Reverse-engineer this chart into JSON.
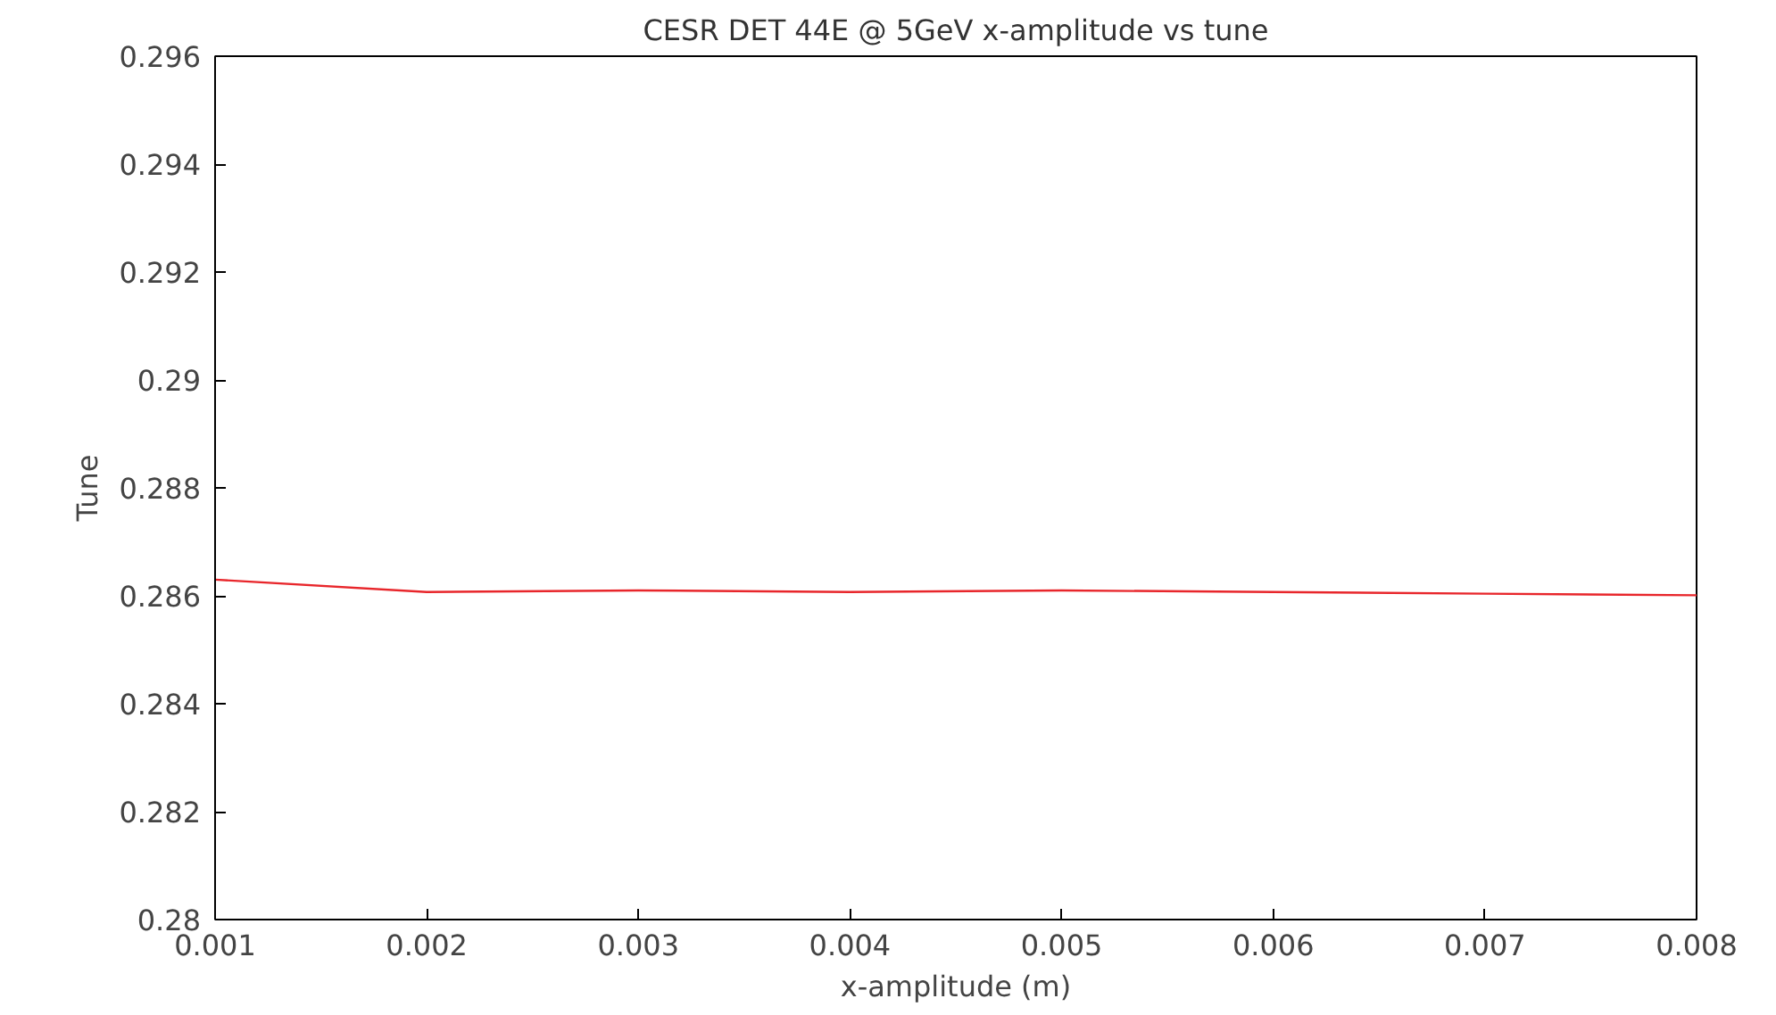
{
  "chart_data": {
    "type": "line",
    "title": "CESR DET 44E @ 5GeV x-amplitude vs tune",
    "xlabel": "x-amplitude (m)",
    "ylabel": "Tune",
    "x": [
      0.001,
      0.002,
      0.003,
      0.004,
      0.005,
      0.006,
      0.007,
      0.008
    ],
    "series": [
      {
        "color": "#e8262b",
        "values": [
          0.2863,
          0.28607,
          0.2861,
          0.28607,
          0.2861,
          0.28607,
          0.28604,
          0.28601
        ]
      }
    ],
    "xlim": [
      0.001,
      0.008
    ],
    "ylim": [
      0.28,
      0.296
    ],
    "xticks": [
      0.001,
      0.002,
      0.003,
      0.004,
      0.005,
      0.006,
      0.007,
      0.008
    ],
    "yticks": [
      0.28,
      0.282,
      0.284,
      0.286,
      0.288,
      {
        "value": 0.29,
        "label": "0.29"
      },
      0.292,
      0.294,
      0.296
    ],
    "grid": false,
    "marker": "none",
    "line_style": "solid"
  }
}
